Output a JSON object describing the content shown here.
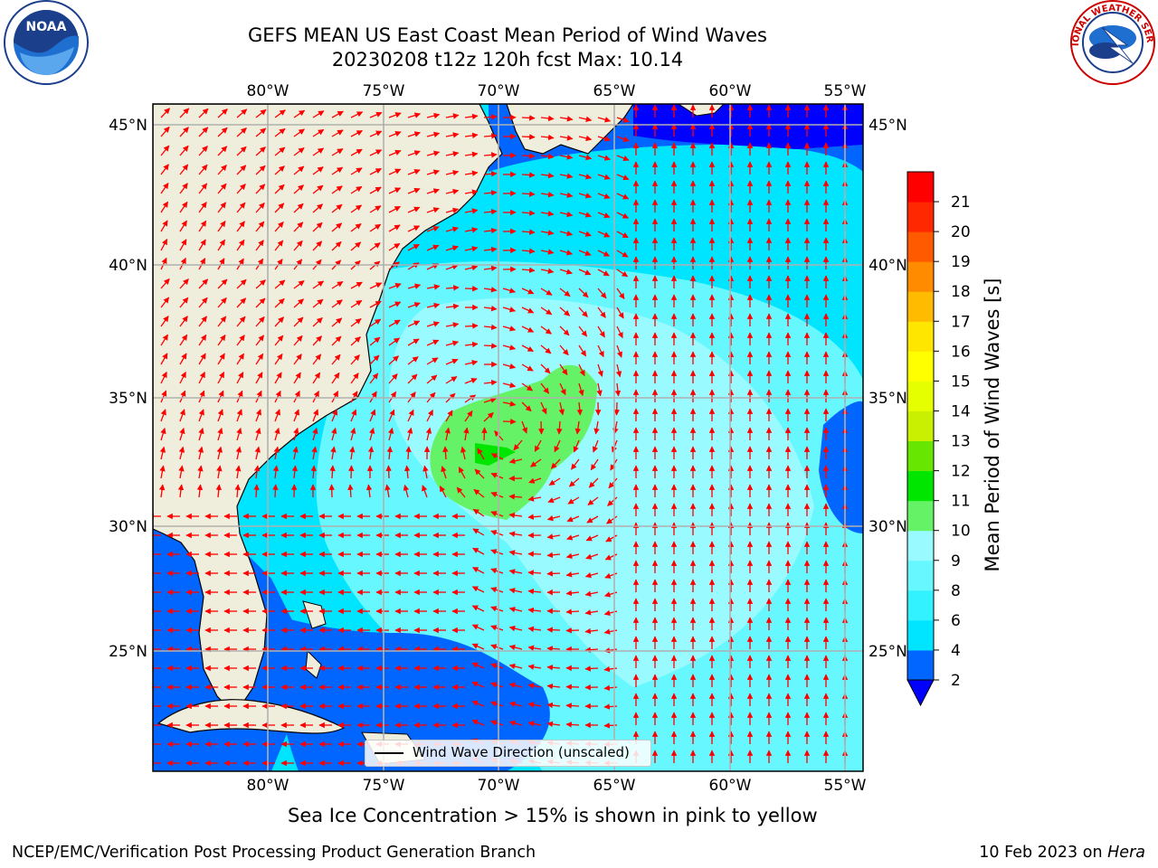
{
  "title_line1": "GEFS MEAN US East Coast Mean Period of Wind Waves",
  "title_line2": "20230208 t12z 120h fcst   Max: 10.14",
  "logos": {
    "left": "NOAA",
    "right": "NATIONAL WEATHER SERVICE"
  },
  "lon_labels": [
    "80°W",
    "75°W",
    "70°W",
    "65°W",
    "60°W",
    "55°W"
  ],
  "lat_labels": [
    "45°N",
    "40°N",
    "35°N",
    "30°N",
    "25°N"
  ],
  "legend_label": "Wind Wave Direction (unscaled)",
  "colorbar": {
    "label": "Mean Period of Wind Waves [s]",
    "ticks": [
      "2",
      "4",
      "6",
      "8",
      "9",
      "10",
      "11",
      "12",
      "13",
      "14",
      "15",
      "16",
      "17",
      "18",
      "19",
      "20",
      "21"
    ],
    "colors": [
      "#0066ff",
      "#00e5ff",
      "#33f2ff",
      "#66f7ff",
      "#99fbff",
      "#66f266",
      "#00e600",
      "#66e600",
      "#c8f000",
      "#e6ff00",
      "#ffff00",
      "#ffe600",
      "#ffbb00",
      "#ff8c00",
      "#ff5a00",
      "#ff2800",
      "#ff0000"
    ],
    "under_color": "#0000ff"
  },
  "caption": "Sea Ice Concentration > 15% is shown in pink to yellow",
  "footer_left": "NCEP/EMC/Verification Post Processing Product Generation Branch",
  "footer_right_date": "10 Feb 2023 on",
  "footer_right_host": "Hera",
  "colors": {
    "land": "#efeedc",
    "arrow": "#ff0000",
    "grid": "#b0b0b0"
  }
}
